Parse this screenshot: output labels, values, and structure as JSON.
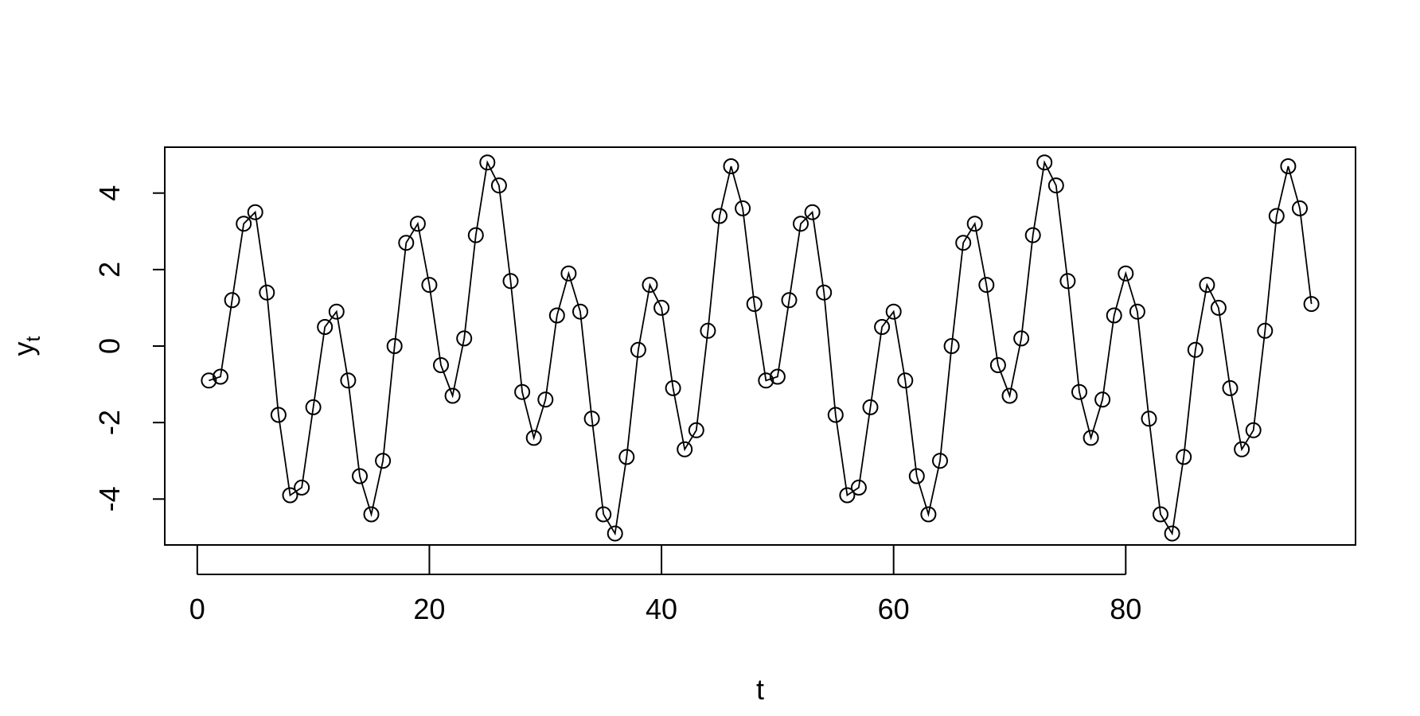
{
  "chart_data": {
    "type": "line",
    "xlabel": "t",
    "ylabel_main": "y",
    "ylabel_sub": "t",
    "xlim": [
      -2.8,
      99.8
    ],
    "ylim": [
      -5.2,
      5.2
    ],
    "xticks": [
      0,
      20,
      40,
      60,
      80
    ],
    "yticks": [
      -4,
      -2,
      0,
      2,
      4
    ],
    "grid": false,
    "markers": "open-circle",
    "series": [
      {
        "x": [
          1,
          2,
          3,
          4,
          5,
          6,
          7,
          8,
          9,
          10,
          11,
          12,
          13,
          14,
          15,
          16,
          17,
          18,
          19,
          20,
          21,
          22,
          23,
          24,
          25,
          26,
          27,
          28,
          29,
          30,
          31,
          32,
          33,
          34,
          35,
          36,
          37,
          38,
          39,
          40,
          41,
          42,
          43,
          44,
          45,
          46,
          47,
          48,
          49,
          50,
          51,
          52,
          53,
          54,
          55,
          56,
          57,
          58,
          59,
          60,
          61,
          62,
          63,
          64,
          65,
          66,
          67,
          68,
          69,
          70,
          71,
          72,
          73,
          74,
          75,
          76,
          77,
          78,
          79,
          80,
          81,
          82,
          83,
          84,
          85,
          86,
          87,
          88,
          89,
          90,
          91,
          92,
          93,
          94,
          95,
          96
        ],
        "values": [
          -0.9,
          -0.8,
          1.2,
          3.2,
          3.5,
          1.4,
          -1.8,
          -3.9,
          -3.7,
          -1.6,
          0.5,
          0.9,
          -0.9,
          -3.4,
          -4.4,
          -3.0,
          0.0,
          2.7,
          3.2,
          1.6,
          -0.5,
          -1.3,
          0.2,
          2.9,
          4.8,
          4.2,
          1.7,
          -1.2,
          -2.4,
          -1.4,
          0.8,
          1.9,
          0.9,
          -1.9,
          -4.4,
          -4.9,
          -2.9,
          -0.1,
          1.6,
          1.0,
          -1.1,
          -2.7,
          -2.2,
          0.4,
          3.4,
          4.7,
          3.6,
          1.1,
          -0.9,
          -0.8,
          1.2,
          3.2,
          3.5,
          1.4,
          -1.8,
          -3.9,
          -3.7,
          -1.6,
          0.5,
          0.9,
          -0.9,
          -3.4,
          -4.4,
          -3.0,
          0.0,
          2.7,
          3.2,
          1.6,
          -0.5,
          -1.3,
          0.2,
          2.9,
          4.8,
          4.2,
          1.7,
          -1.2,
          -2.4,
          -1.4,
          0.8,
          1.9,
          0.9,
          -1.9,
          -4.4,
          -4.9,
          -2.9,
          -0.1,
          1.6,
          1.0,
          -1.1,
          -2.7,
          -2.2,
          0.4,
          3.4,
          4.7,
          3.6,
          1.1
        ]
      }
    ]
  }
}
